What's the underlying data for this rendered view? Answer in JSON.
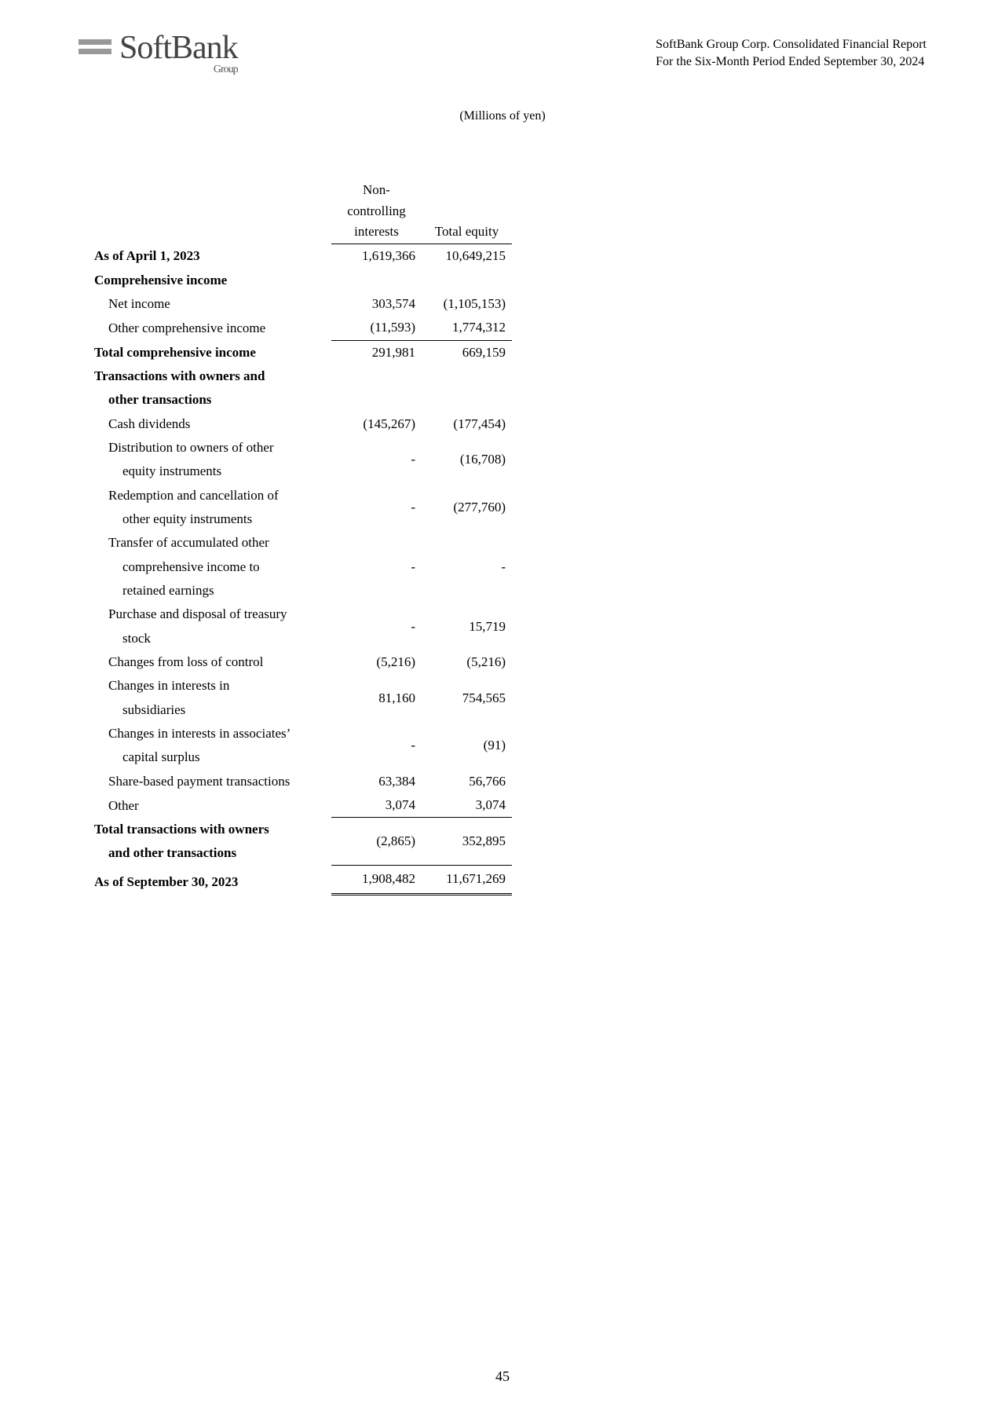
{
  "header": {
    "logo_main": "SoftBank",
    "logo_sub": "Group",
    "right_line1": "SoftBank Group Corp. Consolidated Financial Report",
    "right_line2": "For the Six-Month Period Ended September 30, 2024"
  },
  "units_note": "(Millions of yen)",
  "columns": {
    "col1_line1": "Non-",
    "col1_line2": "controlling",
    "col1_line3": "interests",
    "col2": "Total equity"
  },
  "rows": {
    "opening": {
      "label": "As of April 1, 2023",
      "c1": "1,619,366",
      "c2": "10,649,215"
    },
    "ci_header": {
      "label": "Comprehensive income"
    },
    "net_income": {
      "label": "Net income",
      "c1": "303,574",
      "c2": "(1,105,153)"
    },
    "oci": {
      "label": "Other comprehensive income",
      "c1": "(11,593)",
      "c2": "1,774,312"
    },
    "total_ci": {
      "label": "Total comprehensive income",
      "c1": "291,981",
      "c2": "669,159"
    },
    "trans_header1": {
      "label": "Transactions with owners and"
    },
    "trans_header2": {
      "label": "other transactions"
    },
    "cash_div": {
      "label": "Cash dividends",
      "c1": "(145,267)",
      "c2": "(177,454)"
    },
    "dist1": {
      "label": "Distribution to owners of other"
    },
    "dist2": {
      "label": "equity instruments",
      "c1": "-",
      "c2": "(16,708)"
    },
    "redemp1": {
      "label": "Redemption and cancellation of"
    },
    "redemp2": {
      "label": "other equity instruments",
      "c1": "-",
      "c2": "(277,760)"
    },
    "transfer1": {
      "label": "Transfer of accumulated other"
    },
    "transfer2": {
      "label": "comprehensive income to",
      "c1": "-",
      "c2": "-"
    },
    "transfer3": {
      "label": "retained earnings"
    },
    "treasury1": {
      "label": "Purchase and disposal of treasury"
    },
    "treasury2": {
      "label": "stock",
      "c1": "-",
      "c2": "15,719"
    },
    "loss_ctrl": {
      "label": "Changes from loss of control",
      "c1": "(5,216)",
      "c2": "(5,216)"
    },
    "int_sub1": {
      "label": "Changes in interests in"
    },
    "int_sub2": {
      "label": "subsidiaries",
      "c1": "81,160",
      "c2": "754,565"
    },
    "int_assoc1": {
      "label": "Changes in interests in associates’"
    },
    "int_assoc2": {
      "label": "capital surplus",
      "c1": "-",
      "c2": "(91)"
    },
    "sbp": {
      "label": "Share-based payment transactions",
      "c1": "63,384",
      "c2": "56,766"
    },
    "other": {
      "label": "Other",
      "c1": "3,074",
      "c2": "3,074"
    },
    "tot_trans1": {
      "label": "Total transactions with owners"
    },
    "tot_trans2": {
      "label": "and other transactions",
      "c1": "(2,865)",
      "c2": "352,895"
    },
    "closing": {
      "label": "As of September 30, 2023",
      "c1": "1,908,482",
      "c2": "11,671,269"
    }
  },
  "page_number": "45"
}
